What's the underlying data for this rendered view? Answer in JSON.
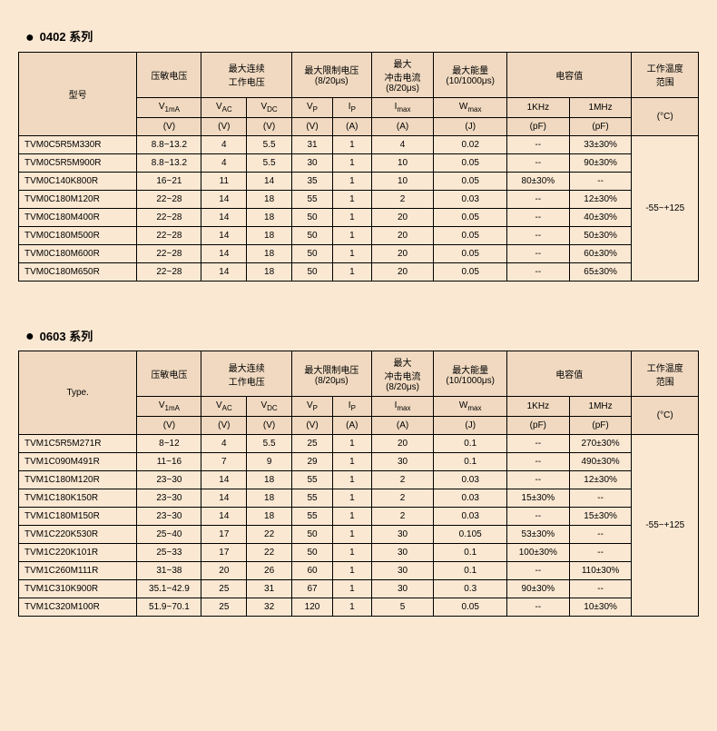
{
  "series": [
    {
      "title": "0402 系列",
      "typeLabel": "型号",
      "headerGroups": {
        "vpress": "压敏电压",
        "maxcont": "最大连续\n工作电压",
        "maxlimit": "最大限制电压\n(8/20μs)",
        "maximp": "最大\n冲击电流\n(8/20μs)",
        "maxenergy": "最大能量\n(10/1000μs)",
        "cap": "电容值",
        "temp": "工作温度\n范围"
      },
      "subHeaders": {
        "v1ma": "V",
        "v1maSub": "1mA",
        "vac": "V",
        "vacSub": "AC",
        "vdc": "V",
        "vdcSub": "DC",
        "vp": "V",
        "vpSub": "P",
        "ip": "I",
        "ipSub": "P",
        "imax": "I",
        "imaxSub": "max",
        "wmax": "W",
        "wmaxSub": "max",
        "khz": "1KHz",
        "mhz": "1MHz",
        "degC": "(°C)"
      },
      "unitRow": {
        "v1ma": "(V)",
        "vac": "(V)",
        "vdc": "(V)",
        "vp": "(V)",
        "ip": "(A)",
        "imax": "(A)",
        "wmax": "(J)",
        "khz": "(pF)",
        "mhz": "(pF)"
      },
      "tempRange": "-55~+125",
      "rows": [
        {
          "m": "TVM0C5R5M330R",
          "v1": "8.8~13.2",
          "vac": "4",
          "vdc": "5.5",
          "vp": "31",
          "ip": "1",
          "imax": "4",
          "wmax": "0.02",
          "khz": "--",
          "mhz": "33±30%"
        },
        {
          "m": "TVM0C5R5M900R",
          "v1": "8.8~13.2",
          "vac": "4",
          "vdc": "5.5",
          "vp": "30",
          "ip": "1",
          "imax": "10",
          "wmax": "0.05",
          "khz": "--",
          "mhz": "90±30%"
        },
        {
          "m": "TVM0C140K800R",
          "v1": "16~21",
          "vac": "11",
          "vdc": "14",
          "vp": "35",
          "ip": "1",
          "imax": "10",
          "wmax": "0.05",
          "khz": "80±30%",
          "mhz": "--"
        },
        {
          "m": "TVM0C180M120R",
          "v1": "22~28",
          "vac": "14",
          "vdc": "18",
          "vp": "55",
          "ip": "1",
          "imax": "2",
          "wmax": "0.03",
          "khz": "--",
          "mhz": "12±30%"
        },
        {
          "m": "TVM0C180M400R",
          "v1": "22~28",
          "vac": "14",
          "vdc": "18",
          "vp": "50",
          "ip": "1",
          "imax": "20",
          "wmax": "0.05",
          "khz": "--",
          "mhz": "40±30%"
        },
        {
          "m": "TVM0C180M500R",
          "v1": "22~28",
          "vac": "14",
          "vdc": "18",
          "vp": "50",
          "ip": "1",
          "imax": "20",
          "wmax": "0.05",
          "khz": "--",
          "mhz": "50±30%"
        },
        {
          "m": "TVM0C180M600R",
          "v1": "22~28",
          "vac": "14",
          "vdc": "18",
          "vp": "50",
          "ip": "1",
          "imax": "20",
          "wmax": "0.05",
          "khz": "--",
          "mhz": "60±30%"
        },
        {
          "m": "TVM0C180M650R",
          "v1": "22~28",
          "vac": "14",
          "vdc": "18",
          "vp": "50",
          "ip": "1",
          "imax": "20",
          "wmax": "0.05",
          "khz": "--",
          "mhz": "65±30%"
        }
      ]
    },
    {
      "title": "0603 系列",
      "typeLabel": "Type.",
      "headerGroups": {
        "vpress": "压敏电压",
        "maxcont": "最大连续\n工作电压",
        "maxlimit": "最大限制电压\n(8/20μs)",
        "maximp": "最大\n冲击电流\n(8/20μs)",
        "maxenergy": "最大能量\n(10/1000μs)",
        "cap": "电容值",
        "temp": "工作温度\n范围"
      },
      "subHeaders": {
        "v1ma": "V",
        "v1maSub": "1mA",
        "vac": "V",
        "vacSub": "AC",
        "vdc": "V",
        "vdcSub": "DC",
        "vp": "V",
        "vpSub": "P",
        "ip": "I",
        "ipSub": "P",
        "imax": "I",
        "imaxSub": "max",
        "wmax": "W",
        "wmaxSub": "max",
        "khz": "1KHz",
        "mhz": "1MHz",
        "degC": "(°C)"
      },
      "unitRow": {
        "v1ma": "(V)",
        "vac": "(V)",
        "vdc": "(V)",
        "vp": "(V)",
        "ip": "(A)",
        "imax": "(A)",
        "wmax": "(J)",
        "khz": "(pF)",
        "mhz": "(pF)"
      },
      "tempRange": "-55~+125",
      "rows": [
        {
          "m": "TVM1C5R5M271R",
          "v1": "8~12",
          "vac": "4",
          "vdc": "5.5",
          "vp": "25",
          "ip": "1",
          "imax": "20",
          "wmax": "0.1",
          "khz": "--",
          "mhz": "270±30%"
        },
        {
          "m": "TVM1C090M491R",
          "v1": "11~16",
          "vac": "7",
          "vdc": "9",
          "vp": "29",
          "ip": "1",
          "imax": "30",
          "wmax": "0.1",
          "khz": "--",
          "mhz": "490±30%"
        },
        {
          "m": "TVM1C180M120R",
          "v1": "23~30",
          "vac": "14",
          "vdc": "18",
          "vp": "55",
          "ip": "1",
          "imax": "2",
          "wmax": "0.03",
          "khz": "--",
          "mhz": "12±30%"
        },
        {
          "m": "TVM1C180K150R",
          "v1": "23~30",
          "vac": "14",
          "vdc": "18",
          "vp": "55",
          "ip": "1",
          "imax": "2",
          "wmax": "0.03",
          "khz": "15±30%",
          "mhz": "--"
        },
        {
          "m": "TVM1C180M150R",
          "v1": "23~30",
          "vac": "14",
          "vdc": "18",
          "vp": "55",
          "ip": "1",
          "imax": "2",
          "wmax": "0.03",
          "khz": "--",
          "mhz": "15±30%"
        },
        {
          "m": "TVM1C220K530R",
          "v1": "25~40",
          "vac": "17",
          "vdc": "22",
          "vp": "50",
          "ip": "1",
          "imax": "30",
          "wmax": "0.105",
          "khz": "53±30%",
          "mhz": "--"
        },
        {
          "m": "TVM1C220K101R",
          "v1": "25~33",
          "vac": "17",
          "vdc": "22",
          "vp": "50",
          "ip": "1",
          "imax": "30",
          "wmax": "0.1",
          "khz": "100±30%",
          "mhz": "--"
        },
        {
          "m": "TVM1C260M111R",
          "v1": "31~38",
          "vac": "20",
          "vdc": "26",
          "vp": "60",
          "ip": "1",
          "imax": "30",
          "wmax": "0.1",
          "khz": "--",
          "mhz": "110±30%"
        },
        {
          "m": "TVM1C310K900R",
          "v1": "35.1~42.9",
          "vac": "25",
          "vdc": "31",
          "vp": "67",
          "ip": "1",
          "imax": "30",
          "wmax": "0.3",
          "khz": "90±30%",
          "mhz": "--"
        },
        {
          "m": "TVM1C320M100R",
          "v1": "51.9~70.1",
          "vac": "25",
          "vdc": "32",
          "vp": "120",
          "ip": "1",
          "imax": "5",
          "wmax": "0.05",
          "khz": "--",
          "mhz": "10±30%"
        }
      ]
    }
  ]
}
